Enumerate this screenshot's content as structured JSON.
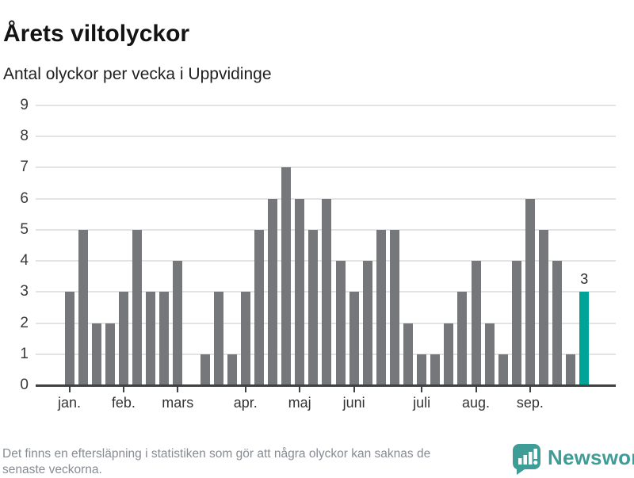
{
  "header": {
    "title": "Årets viltolyckor",
    "subtitle": "Antal olyckor per vecka i Uppvidinge"
  },
  "chart_data": {
    "type": "bar",
    "title": "Årets viltolyckor",
    "subtitle": "Antal olyckor per vecka i Uppvidinge",
    "ylabel": "",
    "xlabel": "",
    "ylim": [
      0,
      9
    ],
    "grid": true,
    "legend": false,
    "y_ticks": [
      0,
      1,
      2,
      3,
      4,
      5,
      6,
      7,
      8,
      9
    ],
    "values": [
      3,
      5,
      2,
      2,
      3,
      5,
      3,
      3,
      4,
      0,
      1,
      3,
      1,
      3,
      5,
      6,
      7,
      6,
      5,
      6,
      4,
      3,
      4,
      5,
      5,
      2,
      1,
      1,
      2,
      3,
      4,
      2,
      1,
      4,
      6,
      5,
      4,
      1,
      3
    ],
    "highlight_index": 38,
    "highlight_value_label": "3",
    "month_ticks": [
      {
        "label": "jan.",
        "week_index": 0
      },
      {
        "label": "feb.",
        "week_index": 4
      },
      {
        "label": "mars",
        "week_index": 8
      },
      {
        "label": "apr.",
        "week_index": 13
      },
      {
        "label": "maj",
        "week_index": 17
      },
      {
        "label": "juni",
        "week_index": 21
      },
      {
        "label": "juli",
        "week_index": 26
      },
      {
        "label": "aug.",
        "week_index": 30
      },
      {
        "label": "sep.",
        "week_index": 34
      }
    ],
    "colors": {
      "bar": "#76777a",
      "highlight": "#00a398",
      "grid": "#e3e3e3",
      "axis": "#3f4245"
    }
  },
  "footer": {
    "note_line1": "Det finns en eftersläpning i statistiken som gör att några olyckor kan saknas de",
    "note_line2": "senaste veckorna.",
    "brand": "Newsworthy"
  }
}
